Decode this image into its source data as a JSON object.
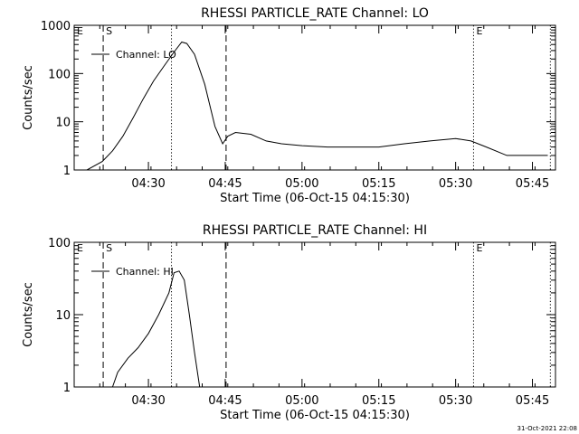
{
  "footer_timestamp": "31-Oct-2021 22:08",
  "chart_data": [
    {
      "type": "line",
      "title": "RHESSI PARTICLE_RATE Channel: LO",
      "xlabel": "Start Time (06-Oct-15 04:15:30)",
      "ylabel": "Counts/sec",
      "yscale": "log",
      "ylim": [
        1,
        1000
      ],
      "xlim_minutes_after_start": [
        0,
        94
      ],
      "x_tick_labels": [
        "04:30",
        "04:45",
        "05:00",
        "05:15",
        "05:30",
        "05:45"
      ],
      "y_tick_labels": [
        "1",
        "10",
        "100",
        "1000"
      ],
      "legend": {
        "label": "Channel: LO",
        "placement": "top-left"
      },
      "markers": [
        {
          "label": "E",
          "time": "04:15:30",
          "style": "dotted"
        },
        {
          "label": "S",
          "time": "04:21:10",
          "style": "dashed"
        },
        {
          "label": "",
          "time": "04:34:30",
          "style": "dotted"
        },
        {
          "label": "",
          "time": "04:45:10",
          "style": "dashed"
        },
        {
          "label": "E",
          "time": "05:33:30",
          "style": "dotted"
        },
        {
          "label": "",
          "time": "05:48:30",
          "style": "dotted"
        }
      ],
      "series": [
        {
          "x_time": [
            "04:15:30",
            "04:18:00",
            "04:21:00",
            "04:23:00",
            "04:25:00",
            "04:27:00",
            "04:29:00",
            "04:31:00",
            "04:33:00",
            "04:35:00",
            "04:36:30",
            "04:37:30",
            "04:39:00",
            "04:41:00",
            "04:43:00",
            "04:44:30",
            "04:45:30",
            "04:47:00",
            "04:50:00",
            "04:53:00",
            "04:56:00",
            "05:00:00",
            "05:05:00",
            "05:10:00",
            "05:15:00",
            "05:20:00",
            "05:25:00",
            "05:30:00",
            "05:33:00",
            "05:36:00",
            "05:40:00",
            "05:45:00",
            "05:48:00"
          ],
          "y": [
            1,
            1,
            1.5,
            2.5,
            5,
            12,
            30,
            70,
            140,
            280,
            450,
            420,
            250,
            60,
            8,
            3.5,
            5,
            6,
            5.5,
            4,
            3.5,
            3.2,
            3,
            3,
            3,
            3.5,
            4,
            4.5,
            4,
            3,
            2,
            2,
            2
          ]
        }
      ]
    },
    {
      "type": "line",
      "title": "RHESSI PARTICLE_RATE Channel: HI",
      "xlabel": "Start Time (06-Oct-15 04:15:30)",
      "ylabel": "Counts/sec",
      "yscale": "log",
      "ylim": [
        1,
        100
      ],
      "xlim_minutes_after_start": [
        0,
        94
      ],
      "x_tick_labels": [
        "04:30",
        "04:45",
        "05:00",
        "05:15",
        "05:30",
        "05:45"
      ],
      "y_tick_labels": [
        "1",
        "10",
        "100"
      ],
      "legend": {
        "label": "Channel: HI",
        "placement": "top-left"
      },
      "markers": [
        {
          "label": "E",
          "time": "04:15:30",
          "style": "dotted"
        },
        {
          "label": "S",
          "time": "04:21:10",
          "style": "dashed"
        },
        {
          "label": "",
          "time": "04:34:30",
          "style": "dotted"
        },
        {
          "label": "",
          "time": "04:45:10",
          "style": "dashed"
        },
        {
          "label": "E",
          "time": "05:33:30",
          "style": "dotted"
        },
        {
          "label": "",
          "time": "05:48:30",
          "style": "dotted"
        }
      ],
      "series": [
        {
          "x_time": [
            "04:23:00",
            "04:24:00",
            "04:26:00",
            "04:28:00",
            "04:30:00",
            "04:32:00",
            "04:34:00",
            "04:35:00",
            "04:36:00",
            "04:37:00",
            "04:38:00",
            "04:39:00",
            "04:40:00"
          ],
          "y": [
            1,
            1.6,
            2.5,
            3.5,
            5.5,
            10,
            20,
            38,
            40,
            30,
            10,
            3,
            1
          ]
        }
      ]
    }
  ]
}
